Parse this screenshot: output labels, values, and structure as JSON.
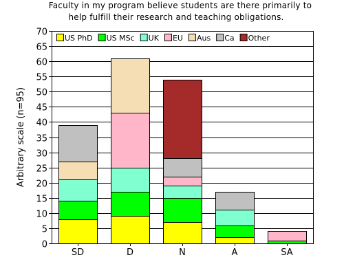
{
  "chart_data": {
    "type": "bar",
    "stacked": true,
    "title_lines": [
      "Faculty in my program believe students are there primarily to",
      "help fulfill their research and teaching obligations."
    ],
    "xlabel": "",
    "ylabel": "Arbitrary scale (n=95)",
    "ylim": [
      0,
      70
    ],
    "yticks": [
      0,
      5,
      10,
      15,
      20,
      25,
      30,
      35,
      40,
      45,
      50,
      55,
      60,
      65,
      70
    ],
    "grid": true,
    "legend_position": "top-left, inside plot",
    "categories": [
      "SD",
      "D",
      "N",
      "A",
      "SA"
    ],
    "series": [
      {
        "name": "US PhD",
        "color": "#ffff00",
        "values": [
          8,
          9,
          7,
          2,
          0
        ]
      },
      {
        "name": "US MSc",
        "color": "#00ff00",
        "values": [
          6,
          8,
          8,
          4,
          1
        ]
      },
      {
        "name": "UK",
        "color": "#80ffd0",
        "values": [
          7,
          8,
          4,
          5,
          0
        ]
      },
      {
        "name": "EU",
        "color": "#ffb6c8",
        "values": [
          0,
          18,
          3,
          0,
          3
        ]
      },
      {
        "name": "Aus",
        "color": "#f5deb3",
        "values": [
          6,
          18,
          0,
          0,
          0
        ]
      },
      {
        "name": "Ca",
        "color": "#c0c0c0",
        "values": [
          12,
          0,
          6,
          6,
          0
        ]
      },
      {
        "name": "Other",
        "color": "#a52a2a",
        "values": [
          0,
          0,
          26,
          0,
          0
        ]
      }
    ]
  }
}
